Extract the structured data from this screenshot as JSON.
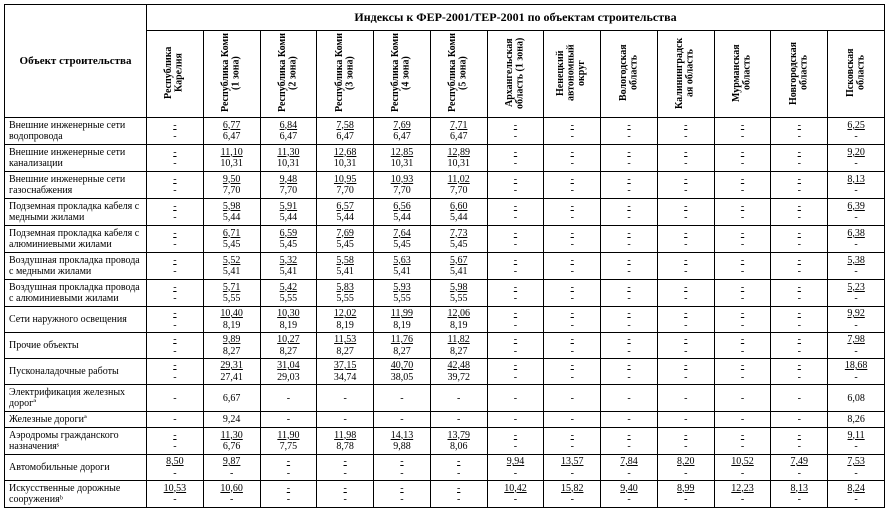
{
  "header": {
    "object_col": "Объект строительства",
    "group": "Индексы к ФЕР-2001/ТЕР-2001 по объектам строительства",
    "cols": [
      "Республика Карелия",
      "Республика Коми (1 зона)",
      "Республика Коми (2 зона)",
      "Республика Коми (3 зона)",
      "Республика Коми (4 зона)",
      "Республика Коми (5 зона)",
      "Архангельская область (1 зона)",
      "Ненецкий автономный округ",
      "Вологодская область",
      "Калининградск ая область",
      "Мурманская область",
      "Новгородская область",
      "Псковская область"
    ]
  },
  "rows": [
    {
      "name": "Внешние инженерные сети водопровода",
      "cells": [
        [
          "-",
          "-"
        ],
        [
          "6,77",
          "6,47"
        ],
        [
          "6,84",
          "6,47"
        ],
        [
          "7,58",
          "6,47"
        ],
        [
          "7,69",
          "6,47"
        ],
        [
          "7,71",
          "6,47"
        ],
        [
          "-",
          "-"
        ],
        [
          "-",
          "-"
        ],
        [
          "-",
          "-"
        ],
        [
          "-",
          "-"
        ],
        [
          "-",
          "-"
        ],
        [
          "-",
          "-"
        ],
        [
          "6,25",
          "-"
        ]
      ]
    },
    {
      "name": "Внешние инженерные сети канализации",
      "cells": [
        [
          "-",
          "-"
        ],
        [
          "11,10",
          "10,31"
        ],
        [
          "11,30",
          "10,31"
        ],
        [
          "12,68",
          "10,31"
        ],
        [
          "12,85",
          "10,31"
        ],
        [
          "12,89",
          "10,31"
        ],
        [
          "-",
          "-"
        ],
        [
          "-",
          "-"
        ],
        [
          "-",
          "-"
        ],
        [
          "-",
          "-"
        ],
        [
          "-",
          "-"
        ],
        [
          "-",
          "-"
        ],
        [
          "9,20",
          "-"
        ]
      ]
    },
    {
      "name": "Внешние инженерные сети газоснабжения",
      "cells": [
        [
          "-",
          "-"
        ],
        [
          "9,50",
          "7,70"
        ],
        [
          "9,48",
          "7,70"
        ],
        [
          "10,95",
          "7,70"
        ],
        [
          "10,93",
          "7,70"
        ],
        [
          "11,02",
          "7,70"
        ],
        [
          "-",
          "-"
        ],
        [
          "-",
          "-"
        ],
        [
          "-",
          "-"
        ],
        [
          "-",
          "-"
        ],
        [
          "-",
          "-"
        ],
        [
          "-",
          "-"
        ],
        [
          "8,13",
          "-"
        ]
      ]
    },
    {
      "name": "Подземная прокладка кабеля с медными жилами",
      "cells": [
        [
          "-",
          "-"
        ],
        [
          "5,98",
          "5,44"
        ],
        [
          "5,91",
          "5,44"
        ],
        [
          "6,57",
          "5,44"
        ],
        [
          "6,56",
          "5,44"
        ],
        [
          "6,60",
          "5,44"
        ],
        [
          "-",
          "-"
        ],
        [
          "-",
          "-"
        ],
        [
          "-",
          "-"
        ],
        [
          "-",
          "-"
        ],
        [
          "-",
          "-"
        ],
        [
          "-",
          "-"
        ],
        [
          "6,39",
          "-"
        ]
      ]
    },
    {
      "name": "Подземная прокладка кабеля с алюминиевыми жилами",
      "cells": [
        [
          "-",
          "-"
        ],
        [
          "6,71",
          "5,45"
        ],
        [
          "6,59",
          "5,45"
        ],
        [
          "7,69",
          "5,45"
        ],
        [
          "7,64",
          "5,45"
        ],
        [
          "7,73",
          "5,45"
        ],
        [
          "-",
          "-"
        ],
        [
          "-",
          "-"
        ],
        [
          "-",
          "-"
        ],
        [
          "-",
          "-"
        ],
        [
          "-",
          "-"
        ],
        [
          "-",
          "-"
        ],
        [
          "6,38",
          "-"
        ]
      ]
    },
    {
      "name": "Воздушная прокладка провода с медными жилами",
      "cells": [
        [
          "-",
          "-"
        ],
        [
          "5,52",
          "5,41"
        ],
        [
          "5,32",
          "5,41"
        ],
        [
          "5,58",
          "5,41"
        ],
        [
          "5,63",
          "5,41"
        ],
        [
          "5,67",
          "5,41"
        ],
        [
          "-",
          "-"
        ],
        [
          "-",
          "-"
        ],
        [
          "-",
          "-"
        ],
        [
          "-",
          "-"
        ],
        [
          "-",
          "-"
        ],
        [
          "-",
          "-"
        ],
        [
          "5,38",
          "-"
        ]
      ]
    },
    {
      "name": "Воздушная прокладка провода с алюминиевыми жилами",
      "cells": [
        [
          "-",
          "-"
        ],
        [
          "5,71",
          "5,55"
        ],
        [
          "5,42",
          "5,55"
        ],
        [
          "5,83",
          "5,55"
        ],
        [
          "5,93",
          "5,55"
        ],
        [
          "5,98",
          "5,55"
        ],
        [
          "-",
          "-"
        ],
        [
          "-",
          "-"
        ],
        [
          "-",
          "-"
        ],
        [
          "-",
          "-"
        ],
        [
          "-",
          "-"
        ],
        [
          "-",
          "-"
        ],
        [
          "5,23",
          "-"
        ]
      ]
    },
    {
      "name": "Сети наружного освещения",
      "cells": [
        [
          "-",
          "-"
        ],
        [
          "10,40",
          "8,19"
        ],
        [
          "10,30",
          "8,19"
        ],
        [
          "12,02",
          "8,19"
        ],
        [
          "11,99",
          "8,19"
        ],
        [
          "12,06",
          "8,19"
        ],
        [
          "-",
          "-"
        ],
        [
          "-",
          "-"
        ],
        [
          "-",
          "-"
        ],
        [
          "-",
          "-"
        ],
        [
          "-",
          "-"
        ],
        [
          "-",
          "-"
        ],
        [
          "9,92",
          "-"
        ]
      ]
    },
    {
      "name": "Прочие объекты",
      "cells": [
        [
          "-",
          "-"
        ],
        [
          "9,89",
          "8,27"
        ],
        [
          "10,27",
          "8,27"
        ],
        [
          "11,53",
          "8,27"
        ],
        [
          "11,76",
          "8,27"
        ],
        [
          "11,82",
          "8,27"
        ],
        [
          "-",
          "-"
        ],
        [
          "-",
          "-"
        ],
        [
          "-",
          "-"
        ],
        [
          "-",
          "-"
        ],
        [
          "-",
          "-"
        ],
        [
          "-",
          "-"
        ],
        [
          "7,98",
          "-"
        ]
      ]
    },
    {
      "name": "Пусконаладочные работы",
      "cells": [
        [
          "-",
          "-"
        ],
        [
          "29,31",
          "27,41"
        ],
        [
          "31,04",
          "29,03"
        ],
        [
          "37,15",
          "34,74"
        ],
        [
          "40,70",
          "38,05"
        ],
        [
          "42,48",
          "39,72"
        ],
        [
          "-",
          "-"
        ],
        [
          "-",
          "-"
        ],
        [
          "-",
          "-"
        ],
        [
          "-",
          "-"
        ],
        [
          "-",
          "-"
        ],
        [
          "-",
          "-"
        ],
        [
          "18,68",
          "-"
        ]
      ]
    },
    {
      "name": "Электрификация железных дорогª",
      "cells": [
        [
          "-"
        ],
        [
          "6,67"
        ],
        [
          "-"
        ],
        [
          "-"
        ],
        [
          "-"
        ],
        [
          "-"
        ],
        [
          "-"
        ],
        [
          "-"
        ],
        [
          "-"
        ],
        [
          "-"
        ],
        [
          "-"
        ],
        [
          "-"
        ],
        [
          "6,08"
        ]
      ]
    },
    {
      "name": "Железные дорогиª",
      "cells": [
        [
          "-"
        ],
        [
          "9,24"
        ],
        [
          "-"
        ],
        [
          "-"
        ],
        [
          "-"
        ],
        [
          "-"
        ],
        [
          "-"
        ],
        [
          "-"
        ],
        [
          "-"
        ],
        [
          "-"
        ],
        [
          "-"
        ],
        [
          "-"
        ],
        [
          "8,26"
        ]
      ]
    },
    {
      "name": "Аэродромы гражданского назначенияˢ",
      "cells": [
        [
          "-",
          "-"
        ],
        [
          "11,30",
          "6,76"
        ],
        [
          "11,90",
          "7,75"
        ],
        [
          "11,98",
          "8,78"
        ],
        [
          "14,13",
          "9,88"
        ],
        [
          "13,79",
          "8,06"
        ],
        [
          "-",
          "-"
        ],
        [
          "-",
          "-"
        ],
        [
          "-",
          "-"
        ],
        [
          "-",
          "-"
        ],
        [
          "-",
          "-"
        ],
        [
          "-",
          "-"
        ],
        [
          "9,11",
          "-"
        ]
      ]
    },
    {
      "name": "Автомобильные дороги",
      "cells": [
        [
          "8,50",
          "-"
        ],
        [
          "9,87",
          "-"
        ],
        [
          "-",
          "-"
        ],
        [
          "-",
          "-"
        ],
        [
          "-",
          "-"
        ],
        [
          "-",
          "-"
        ],
        [
          "9,94",
          "-"
        ],
        [
          "13,57",
          "-"
        ],
        [
          "7,84",
          "-"
        ],
        [
          "8,20",
          "-"
        ],
        [
          "10,52",
          "-"
        ],
        [
          "7,49",
          "-"
        ],
        [
          "7,53",
          "-"
        ]
      ]
    },
    {
      "name": "Искусственные дорожные сооруженияᵇ",
      "cells": [
        [
          "10,53",
          "-"
        ],
        [
          "10,60",
          "-"
        ],
        [
          "-",
          "-"
        ],
        [
          "-",
          "-"
        ],
        [
          "-",
          "-"
        ],
        [
          "-",
          "-"
        ],
        [
          "10,42",
          "-"
        ],
        [
          "15,82",
          "-"
        ],
        [
          "9,40",
          "-"
        ],
        [
          "8,99",
          "-"
        ],
        [
          "12,23",
          "-"
        ],
        [
          "8,13",
          "-"
        ],
        [
          "8,24",
          "-"
        ]
      ]
    }
  ]
}
